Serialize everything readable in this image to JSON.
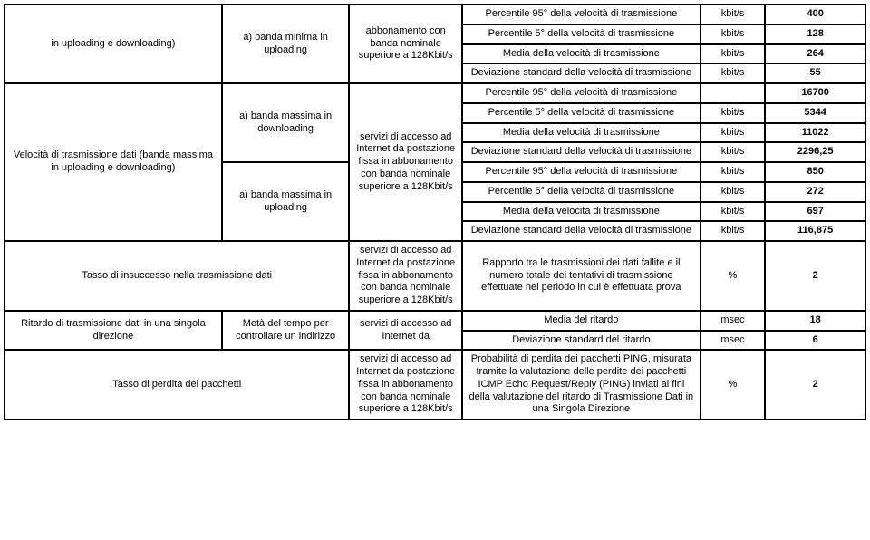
{
  "rows": {
    "r0": {
      "c1": "in uploading e downloading)",
      "c2": "a) banda minima in uploading",
      "c3": "abbonamento con banda nominale superiore a 128Kbit/s",
      "c4": "Percentile 95° della velocità di trasmissione",
      "c5": "kbit/s",
      "c6": "400"
    },
    "r1": {
      "c4": "Percentile 5° della velocità di trasmissione",
      "c5": "kbit/s",
      "c6": "128"
    },
    "r2": {
      "c4": "Media della velocità di trasmissione",
      "c5": "kbit/s",
      "c6": "264"
    },
    "r3": {
      "c4": "Deviazione standard della velocità di trasmissione",
      "c5": "kbit/s",
      "c6": "55"
    },
    "r4": {
      "c1": "Velocità di trasmissione dati (banda massima in uploading e downloading)",
      "c2": "a) banda massima in downloading",
      "c3": "servizi di accesso ad Internet da postazione fissa in abbonamento con banda nominale superiore a 128Kbit/s",
      "c4": "Percentile 95° della velocità di trasmissione",
      "c5": "",
      "c6": "16700"
    },
    "r5": {
      "c4": "Percentile 5° della velocità di trasmissione",
      "c5": "kbit/s",
      "c6": "5344"
    },
    "r6": {
      "c4": "Media della velocità di trasmissione",
      "c5": "kbit/s",
      "c6": "11022"
    },
    "r7": {
      "c4": "Deviazione standard della velocità di trasmissione",
      "c5": "kbit/s",
      "c6": "2296,25"
    },
    "r8": {
      "c2": "a) banda massima in uploading",
      "c4": "Percentile 95° della velocità di trasmissione",
      "c5": "kbit/s",
      "c6": "850"
    },
    "r9": {
      "c4": "Percentile 5° della velocità di trasmissione",
      "c5": "kbit/s",
      "c6": "272"
    },
    "r10": {
      "c4": "Media della velocità di trasmissione",
      "c5": "kbit/s",
      "c6": "697"
    },
    "r11": {
      "c4": "Deviazione standard della velocità di trasmissione",
      "c5": "kbit/s",
      "c6": "116,875"
    },
    "r12": {
      "c1": "Tasso di insuccesso nella trasmissione dati",
      "c3": "servizi di accesso ad Internet da postazione fissa in abbonamento con banda nominale superiore a 128Kbit/s",
      "c4": "Rapporto tra le trasmissioni dei dati fallite e il numero totale dei tentativi di trasmissione effettuate nel periodo in cui è effettuata prova",
      "c5": "%",
      "c6": "2"
    },
    "r13": {
      "c1": "Ritardo di trasmissione dati in una singola direzione",
      "c2": "Metà del tempo per controllare un indirizzo",
      "c3": "servizi di accesso ad Internet da",
      "c4": "Media del ritardo",
      "c5": "msec",
      "c6": "18"
    },
    "r14": {
      "c4": "Deviazione standard del ritardo",
      "c5": "msec",
      "c6": "6"
    },
    "r15": {
      "c1": "Tasso di perdita dei pacchetti",
      "c3": "servizi di accesso ad Internet da postazione fissa in abbonamento con banda nominale superiore a 128Kbit/s",
      "c4": "Probabilità di perdita dei pacchetti PING, misurata tramite la valutazione delle perdite dei pacchetti ICMP Echo Request/Reply (PING) inviati ai fini della valutazione del ritardo di Trasmissione Dati in una Singola Direzione",
      "c5": "%",
      "c6": "2"
    }
  }
}
